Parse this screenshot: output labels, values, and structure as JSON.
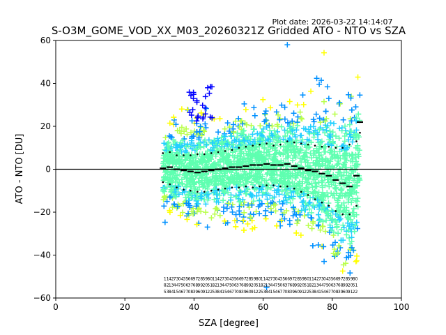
{
  "chart_data": {
    "type": "scatter",
    "title": "S-O3M_GOME_VOD_XX_M03_20260321Z Gridded ATO - NTO vs SZA",
    "subtitle": "Plot date: 2026-03-22 14:14:07",
    "xlabel": "SZA [degree]",
    "ylabel": "ATO - NTO [DU]",
    "xlim": [
      0,
      100
    ],
    "ylim": [
      -60,
      60
    ],
    "xticks": [
      0,
      20,
      40,
      60,
      80,
      100
    ],
    "yticks": [
      -60,
      -40,
      -20,
      0,
      20,
      40,
      60
    ],
    "zero_line": 0,
    "marker": "plus",
    "colormap_colors": [
      "#0000ff",
      "#0090ff",
      "#22d0ff",
      "#5fffb0",
      "#b8ff4a",
      "#ffff00",
      "#ffd000"
    ],
    "reference_points": [
      {
        "name": "outlier-blue-cluster",
        "x": 42,
        "y": 30
      },
      {
        "name": "outlier-high",
        "x": 67,
        "y": 58
      },
      {
        "name": "outlier-low",
        "x": 61,
        "y": -55
      }
    ],
    "series": [
      {
        "name": "mean",
        "color": "#000000",
        "x": [
          31,
          33,
          35,
          37,
          39,
          41,
          43,
          45,
          47,
          49,
          51,
          53,
          55,
          57,
          59,
          61,
          63,
          65,
          67,
          69,
          71,
          73,
          75,
          77,
          79,
          81,
          83,
          85,
          87,
          88
        ],
        "y": [
          0.5,
          1.0,
          0.0,
          -0.5,
          -1.0,
          -1.5,
          -1.0,
          -0.5,
          0.0,
          0.5,
          1.0,
          1.0,
          1.5,
          2.0,
          2.0,
          2.5,
          2.0,
          2.0,
          2.5,
          1.5,
          0.5,
          -0.5,
          -1.0,
          -2.0,
          -3.0,
          -5.0,
          -6.5,
          -8.0,
          -3.0,
          22.0
        ]
      },
      {
        "name": "mean + std",
        "color": "#000000",
        "x": [
          31,
          33,
          35,
          37,
          39,
          41,
          43,
          45,
          47,
          49,
          51,
          53,
          55,
          57,
          59,
          61,
          63,
          65,
          67,
          69,
          71,
          73,
          75,
          77,
          79,
          81,
          83,
          85,
          87,
          88
        ],
        "y": [
          7.5,
          8.0,
          6.5,
          6.5,
          6.5,
          7.0,
          7.0,
          7.5,
          8.0,
          8.5,
          9.0,
          10.0,
          10.5,
          11.0,
          11.5,
          12.0,
          11.0,
          11.5,
          13.0,
          12.5,
          12.0,
          11.5,
          11.0,
          10.5,
          10.5,
          10.0,
          10.0,
          11.5,
          13.0,
          17.0
        ]
      },
      {
        "name": "mean - std",
        "color": "#000000",
        "x": [
          31,
          33,
          35,
          37,
          39,
          41,
          43,
          45,
          47,
          49,
          51,
          53,
          55,
          57,
          59,
          61,
          63,
          65,
          67,
          69,
          71,
          73,
          75,
          77,
          79,
          81,
          83,
          85,
          87
        ],
        "y": [
          -6.0,
          -7.0,
          -8.5,
          -9.5,
          -10.0,
          -10.5,
          -10.5,
          -10.0,
          -9.5,
          -9.0,
          -8.5,
          -8.5,
          -8.0,
          -8.5,
          -8.0,
          -7.5,
          -7.5,
          -8.0,
          -8.0,
          -9.0,
          -10.5,
          -12.0,
          -14.0,
          -15.5,
          -17.0,
          -19.5,
          -21.0,
          -21.0,
          -17.0
        ]
      }
    ]
  }
}
